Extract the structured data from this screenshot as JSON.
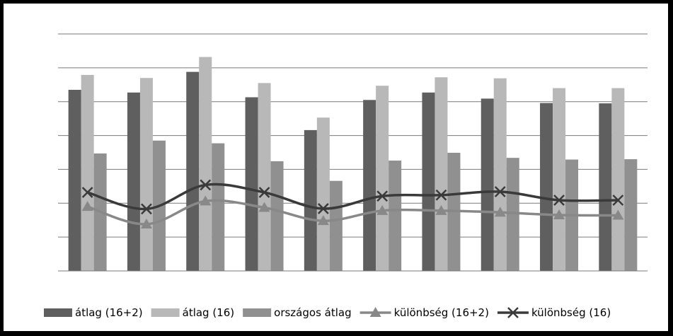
{
  "chart_data": {
    "type": "bar",
    "categories": [
      "",
      "",
      "",
      "",
      "",
      "",
      "",
      "",
      "",
      ""
    ],
    "ylim": [
      0,
      7
    ],
    "grid": true,
    "legend_position": "bottom",
    "series": [
      {
        "name": "átlag (16+2)",
        "kind": "bar",
        "color": "#5f5f5f",
        "values": [
          5.35,
          5.27,
          5.88,
          5.13,
          4.16,
          5.05,
          5.27,
          5.09,
          4.96,
          4.95
        ]
      },
      {
        "name": "átlag (16)",
        "kind": "bar",
        "color": "#b8b8b8",
        "values": [
          5.79,
          5.7,
          6.32,
          5.55,
          4.53,
          5.47,
          5.72,
          5.69,
          5.4,
          5.4
        ]
      },
      {
        "name": "országos átlag",
        "kind": "bar",
        "color": "#909090",
        "values": [
          3.47,
          3.85,
          3.77,
          3.24,
          2.66,
          3.26,
          3.49,
          3.34,
          3.29,
          3.3
        ]
      },
      {
        "name": "különbség (16+2)",
        "kind": "line",
        "marker": "triangle",
        "color": "#888888",
        "values": [
          1.9,
          1.38,
          2.06,
          1.87,
          1.48,
          1.78,
          1.78,
          1.73,
          1.65,
          1.64
        ]
      },
      {
        "name": "különbség (16)",
        "kind": "line",
        "marker": "x",
        "color": "#3a3a3a",
        "values": [
          2.32,
          1.83,
          2.54,
          2.32,
          1.84,
          2.21,
          2.24,
          2.34,
          2.09,
          2.09
        ]
      }
    ]
  }
}
